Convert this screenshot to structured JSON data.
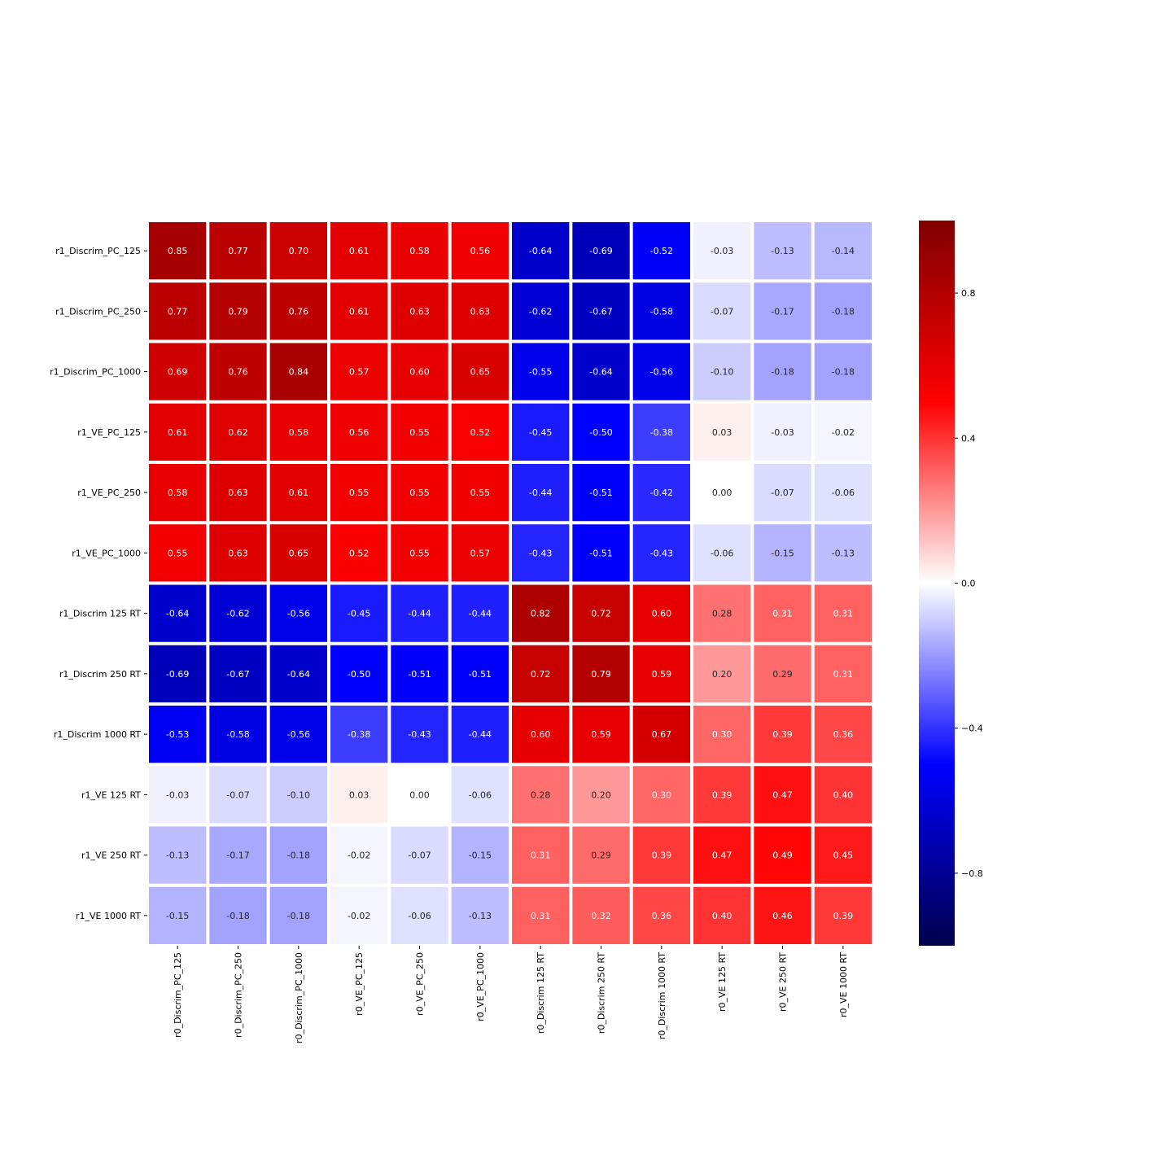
{
  "chart_data": {
    "type": "heatmap",
    "title": "",
    "xlabel": "",
    "ylabel": "",
    "columns": [
      "r0_Discrim_PC_125",
      "r0_Discrim_PC_250",
      "r0_Discrim_PC_1000",
      "r0_VE_PC_125",
      "r0_VE_PC_250",
      "r0_VE_PC_1000",
      "r0_Discrim 125 RT",
      "r0_Discrim 250 RT",
      "r0_Discrim 1000 RT",
      "r0_VE 125 RT",
      "r0_VE 250 RT",
      "r0_VE 1000 RT"
    ],
    "rows": [
      "r1_Discrim_PC_125",
      "r1_Discrim_PC_250",
      "r1_Discrim_PC_1000",
      "r1_VE_PC_125",
      "r1_VE_PC_250",
      "r1_VE_PC_1000",
      "r1_Discrim 125 RT",
      "r1_Discrim 250 RT",
      "r1_Discrim 1000 RT",
      "r1_VE 125 RT",
      "r1_VE 250 RT",
      "r1_VE 1000 RT"
    ],
    "values": [
      [
        0.85,
        0.77,
        0.7,
        0.61,
        0.58,
        0.56,
        -0.64,
        -0.69,
        -0.52,
        -0.03,
        -0.13,
        -0.14
      ],
      [
        0.77,
        0.79,
        0.76,
        0.61,
        0.63,
        0.63,
        -0.62,
        -0.67,
        -0.58,
        -0.07,
        -0.17,
        -0.18
      ],
      [
        0.69,
        0.76,
        0.84,
        0.57,
        0.6,
        0.65,
        -0.55,
        -0.64,
        -0.56,
        -0.1,
        -0.18,
        -0.18
      ],
      [
        0.61,
        0.62,
        0.58,
        0.56,
        0.55,
        0.52,
        -0.45,
        -0.5,
        -0.38,
        0.03,
        -0.03,
        -0.02
      ],
      [
        0.58,
        0.63,
        0.61,
        0.55,
        0.55,
        0.55,
        -0.44,
        -0.51,
        -0.42,
        0.0,
        -0.07,
        -0.06
      ],
      [
        0.55,
        0.63,
        0.65,
        0.52,
        0.55,
        0.57,
        -0.43,
        -0.51,
        -0.43,
        -0.06,
        -0.15,
        -0.13
      ],
      [
        -0.64,
        -0.62,
        -0.56,
        -0.45,
        -0.44,
        -0.44,
        0.82,
        0.72,
        0.6,
        0.28,
        0.31,
        0.31
      ],
      [
        -0.69,
        -0.67,
        -0.64,
        -0.5,
        -0.51,
        -0.51,
        0.72,
        0.79,
        0.59,
        0.2,
        0.29,
        0.31
      ],
      [
        -0.53,
        -0.58,
        -0.56,
        -0.38,
        -0.43,
        -0.44,
        0.6,
        0.59,
        0.67,
        0.3,
        0.39,
        0.36
      ],
      [
        -0.03,
        -0.07,
        -0.1,
        0.03,
        0.0,
        -0.06,
        0.28,
        0.2,
        0.3,
        0.39,
        0.47,
        0.4
      ],
      [
        -0.13,
        -0.17,
        -0.18,
        -0.02,
        -0.07,
        -0.15,
        0.31,
        0.29,
        0.39,
        0.47,
        0.49,
        0.45
      ],
      [
        -0.15,
        -0.18,
        -0.18,
        -0.02,
        -0.06,
        -0.13,
        0.31,
        0.32,
        0.36,
        0.4,
        0.46,
        0.39
      ]
    ],
    "value_format": "2 decimals",
    "colormap": "seismic",
    "vmin": -1.0,
    "vmax": 1.0,
    "colorbar_ticks": [
      0.8,
      0.4,
      0.0,
      -0.4,
      -0.8
    ],
    "colorbar_tick_labels": [
      "0.8",
      "0.4",
      "0.0",
      "−0.4",
      "−0.8"
    ],
    "colorbar_position": "right",
    "grid": false,
    "cell_gap_color": "#ffffff",
    "colors": {
      "seismic_stops": [
        "#00004d",
        "#0000ff",
        "#ffffff",
        "#ff0000",
        "#800000"
      ]
    }
  }
}
